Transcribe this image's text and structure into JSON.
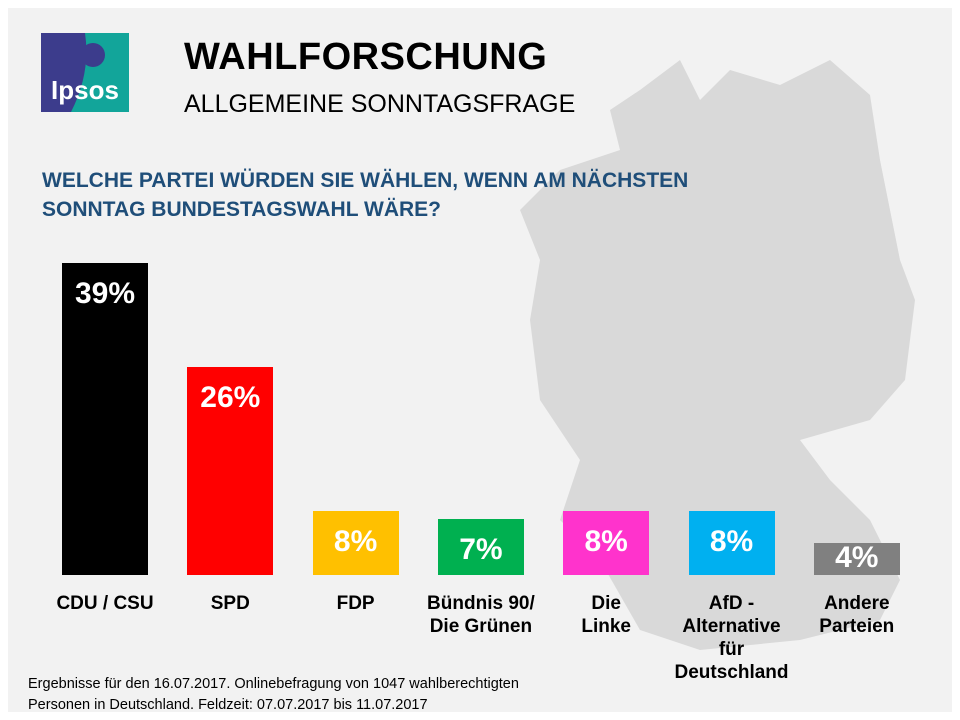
{
  "header": {
    "logo_text": "Ipsos",
    "title": "WAHLFORSCHUNG",
    "subtitle": "ALLGEMEINE SONNTAGSFRAGE"
  },
  "question": "WELCHE PARTEI WÜRDEN SIE WÄHLEN, WENN AM NÄCHSTEN SONNTAG BUNDESTAGSWAHL WÄRE?",
  "colors": {
    "background": "#f2f2f2",
    "map": "#d9d9d9",
    "question": "#1f4e79"
  },
  "chart_data": {
    "type": "bar",
    "title": "",
    "categories": [
      "CDU / CSU",
      "SPD",
      "FDP",
      "Bündnis 90/ Die Grünen",
      "Die Linke",
      "AfD - Alternative für Deutschland",
      "Andere Parteien"
    ],
    "values": [
      39,
      26,
      8,
      7,
      8,
      8,
      4
    ],
    "labels": [
      "39%",
      "26%",
      "8%",
      "7%",
      "8%",
      "8%",
      "4%"
    ],
    "colors": [
      "#000000",
      "#ff0000",
      "#ffc000",
      "#00b050",
      "#ff33cc",
      "#00b0f0",
      "#808080"
    ],
    "unit": "%",
    "ylim": [
      0,
      40
    ],
    "grid": false,
    "legend": "none"
  },
  "footer": {
    "line1": "Ergebnisse für den 16.07.2017. Onlinebefragung  von 1047 wahlberechtigten",
    "line2": "Personen in Deutschland.  Feldzeit: 07.07.2017 bis 11.07.2017"
  }
}
